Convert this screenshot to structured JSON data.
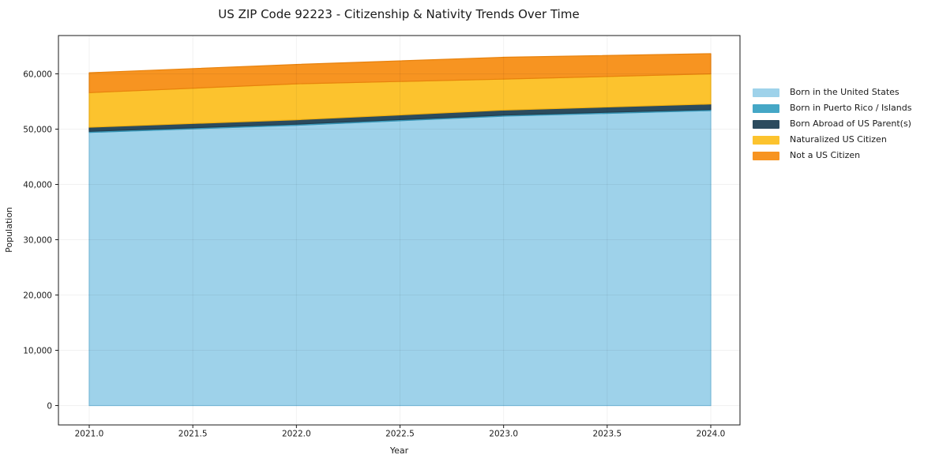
{
  "title": "US ZIP Code 92223 - Citizenship & Nativity Trends Over Time",
  "chart_data": {
    "type": "area",
    "stacked": true,
    "title": "US ZIP Code 92223 - Citizenship & Nativity Trends Over Time",
    "xlabel": "Year",
    "ylabel": "Population",
    "x": [
      2021,
      2022,
      2023,
      2024
    ],
    "series": [
      {
        "id": "born-us",
        "name": "Born in the United States",
        "color": "#9ED2EA",
        "edge": "#7FC2E2",
        "values": [
          49400,
          50700,
          52350,
          53350
        ]
      },
      {
        "id": "born-pr-islands",
        "name": "Born in Puerto Rico / Islands",
        "color": "#45A7C6",
        "edge": "#3694B5",
        "values": [
          200,
          200,
          200,
          200
        ]
      },
      {
        "id": "born-abroad",
        "name": "Born Abroad of US Parent(s)",
        "color": "#2B4B5E",
        "edge": "#223E4E",
        "values": [
          750,
          800,
          900,
          1000
        ]
      },
      {
        "id": "naturalized",
        "name": "Naturalized US Citizen",
        "color": "#FCC32E",
        "edge": "#F3B111",
        "values": [
          6250,
          6500,
          5600,
          5450
        ]
      },
      {
        "id": "not-citizen",
        "name": "Not a US Citizen",
        "color": "#F79421",
        "edge": "#E8820D",
        "values": [
          3600,
          3500,
          3950,
          3650
        ]
      }
    ],
    "x_tick_values": [
      2021,
      2021.5,
      2022,
      2022.5,
      2023,
      2023.5,
      2024
    ],
    "x_tick_labels": [
      "2021.0",
      "2021.5",
      "2022.0",
      "2022.5",
      "2023.0",
      "2023.5",
      "2024.0"
    ],
    "y_tick_values": [
      0,
      10000,
      20000,
      30000,
      40000,
      50000,
      60000
    ],
    "y_tick_labels": [
      "0",
      "10,000",
      "20,000",
      "30,000",
      "40,000",
      "50,000",
      "60,000"
    ],
    "xlim": [
      2020.85,
      2024.14
    ],
    "ylim": [
      0,
      66900
    ],
    "grid": true,
    "legend_position": "right"
  }
}
